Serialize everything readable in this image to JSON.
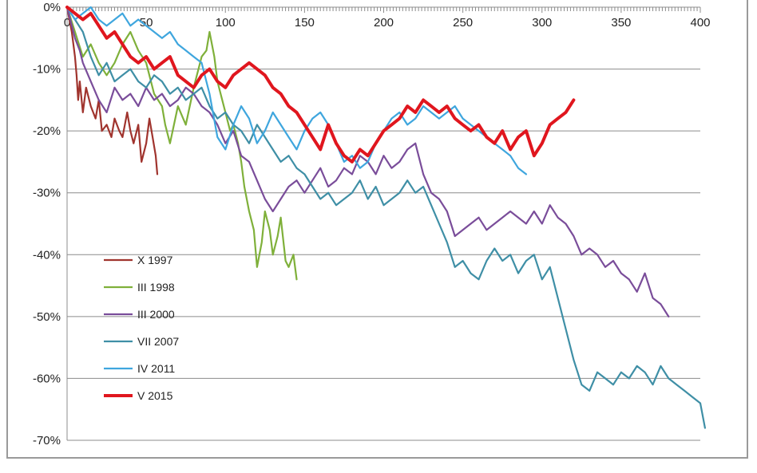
{
  "chart_data": {
    "type": "line",
    "title": "",
    "xlabel": "",
    "ylabel": "",
    "xlim": [
      0,
      400
    ],
    "ylim": [
      -70,
      0
    ],
    "x_ticks": [
      "0",
      "50",
      "100",
      "150",
      "200",
      "250",
      "300",
      "350",
      "400"
    ],
    "y_ticks": [
      "0%",
      "-10%",
      "-20%",
      "-30%",
      "-40%",
      "-50%",
      "-60%",
      "-70%"
    ],
    "grid": "horizontal",
    "legend_position": "lower-left",
    "series": [
      {
        "name": "X 1997",
        "color": "#a0342e",
        "x": [
          0,
          3,
          5,
          6,
          7,
          8,
          10,
          12,
          15,
          18,
          20,
          22,
          25,
          28,
          30,
          33,
          35,
          38,
          40,
          42,
          45,
          47,
          50,
          52,
          54,
          56,
          57
        ],
        "values": [
          0,
          -4,
          -8,
          -11,
          -15,
          -12,
          -17,
          -13,
          -16,
          -18,
          -15,
          -20,
          -19,
          -21,
          -18,
          -20,
          -21,
          -17,
          -20,
          -22,
          -19,
          -25,
          -22,
          -18,
          -21,
          -24,
          -27
        ]
      },
      {
        "name": "III 1998",
        "color": "#7fb03a",
        "x": [
          0,
          5,
          10,
          15,
          20,
          25,
          30,
          35,
          40,
          45,
          50,
          55,
          60,
          62,
          65,
          70,
          75,
          80,
          85,
          88,
          90,
          93,
          95,
          100,
          103,
          105,
          108,
          110,
          112,
          115,
          118,
          120,
          123,
          125,
          128,
          130,
          133,
          135,
          138,
          140,
          143,
          145
        ],
        "values": [
          0,
          -4,
          -8,
          -6,
          -9,
          -11,
          -9,
          -6,
          -4,
          -7,
          -9,
          -14,
          -16,
          -19,
          -22,
          -16,
          -19,
          -13,
          -8,
          -7,
          -4,
          -8,
          -12,
          -17,
          -20,
          -19,
          -22,
          -25,
          -29,
          -33,
          -36,
          -42,
          -38,
          -33,
          -36,
          -40,
          -37,
          -34,
          -41,
          -42,
          -40,
          -44
        ]
      },
      {
        "name": "III 2000",
        "color": "#7a4d9a",
        "x": [
          0,
          5,
          8,
          10,
          15,
          20,
          25,
          30,
          35,
          40,
          45,
          50,
          55,
          60,
          65,
          70,
          75,
          80,
          85,
          90,
          95,
          100,
          105,
          110,
          115,
          120,
          125,
          130,
          135,
          140,
          145,
          150,
          155,
          160,
          165,
          170,
          175,
          180,
          185,
          190,
          195,
          200,
          205,
          210,
          215,
          220,
          225,
          230,
          235,
          240,
          245,
          250,
          255,
          260,
          265,
          270,
          275,
          280,
          285,
          290,
          295,
          300,
          305,
          310,
          315,
          320,
          325,
          330,
          335,
          340,
          345,
          350,
          355,
          360,
          365,
          370,
          375,
          380
        ],
        "values": [
          0,
          -5,
          -7,
          -9,
          -12,
          -15,
          -17,
          -13,
          -15,
          -14,
          -16,
          -13,
          -15,
          -14,
          -16,
          -15,
          -13,
          -14,
          -16,
          -17,
          -19,
          -22,
          -20,
          -24,
          -25,
          -28,
          -31,
          -33,
          -31,
          -29,
          -28,
          -30,
          -28,
          -26,
          -29,
          -28,
          -26,
          -27,
          -24,
          -25,
          -27,
          -24,
          -26,
          -25,
          -23,
          -22,
          -27,
          -30,
          -31,
          -33,
          -37,
          -36,
          -35,
          -34,
          -36,
          -35,
          -34,
          -33,
          -34,
          -35,
          -33,
          -35,
          -32,
          -34,
          -35,
          -37,
          -40,
          -39,
          -40,
          -42,
          -41,
          -43,
          -44,
          -46,
          -43,
          -47,
          -48,
          -50
        ]
      },
      {
        "name": "VII 2007",
        "color": "#3f8fa6",
        "x": [
          0,
          5,
          10,
          15,
          20,
          25,
          30,
          35,
          40,
          45,
          50,
          55,
          60,
          65,
          70,
          75,
          80,
          85,
          90,
          95,
          100,
          105,
          110,
          115,
          120,
          125,
          130,
          135,
          140,
          145,
          150,
          155,
          160,
          165,
          170,
          175,
          180,
          185,
          190,
          195,
          200,
          205,
          210,
          215,
          220,
          225,
          230,
          235,
          240,
          245,
          250,
          255,
          260,
          265,
          270,
          275,
          280,
          285,
          290,
          295,
          300,
          305,
          310,
          315,
          320,
          325,
          330,
          335,
          340,
          345,
          350,
          355,
          360,
          365,
          370,
          375,
          380,
          385,
          390,
          395,
          400,
          403
        ],
        "values": [
          0,
          -2,
          -4,
          -8,
          -11,
          -9,
          -12,
          -11,
          -10,
          -12,
          -13,
          -11,
          -12,
          -14,
          -13,
          -15,
          -14,
          -13,
          -16,
          -18,
          -17,
          -19,
          -20,
          -22,
          -19,
          -21,
          -23,
          -25,
          -24,
          -26,
          -27,
          -29,
          -31,
          -30,
          -32,
          -31,
          -30,
          -28,
          -31,
          -29,
          -32,
          -31,
          -30,
          -28,
          -30,
          -29,
          -32,
          -35,
          -38,
          -42,
          -41,
          -43,
          -44,
          -41,
          -39,
          -41,
          -40,
          -43,
          -41,
          -40,
          -44,
          -42,
          -47,
          -52,
          -57,
          -61,
          -62,
          -59,
          -60,
          -61,
          -59,
          -60,
          -58,
          -59,
          -61,
          -58,
          -60,
          -61,
          -62,
          -63,
          -64,
          -68
        ]
      },
      {
        "name": "IV 2011",
        "color": "#3fa6de",
        "x": [
          0,
          5,
          10,
          15,
          20,
          25,
          30,
          35,
          40,
          45,
          50,
          55,
          60,
          65,
          70,
          75,
          80,
          85,
          90,
          95,
          100,
          105,
          110,
          115,
          120,
          125,
          130,
          135,
          140,
          145,
          150,
          155,
          160,
          165,
          170,
          175,
          180,
          185,
          190,
          195,
          200,
          205,
          210,
          215,
          220,
          225,
          230,
          235,
          240,
          245,
          250,
          255,
          260,
          265,
          270,
          275,
          280,
          285,
          290
        ],
        "values": [
          0,
          -2,
          -1,
          0,
          -2,
          -3,
          -2,
          -1,
          -3,
          -2,
          -3,
          -4,
          -5,
          -4,
          -6,
          -7,
          -8,
          -9,
          -14,
          -21,
          -23,
          -19,
          -16,
          -18,
          -22,
          -20,
          -17,
          -19,
          -21,
          -23,
          -20,
          -18,
          -17,
          -19,
          -22,
          -25,
          -24,
          -26,
          -25,
          -22,
          -20,
          -18,
          -17,
          -19,
          -18,
          -16,
          -17,
          -18,
          -17,
          -16,
          -18,
          -19,
          -20,
          -21,
          -22,
          -23,
          -24,
          -26,
          -27
        ]
      },
      {
        "name": "V 2015",
        "color": "#e0161e",
        "x": [
          0,
          5,
          10,
          15,
          20,
          25,
          30,
          35,
          40,
          45,
          50,
          55,
          60,
          65,
          70,
          75,
          80,
          85,
          90,
          95,
          100,
          105,
          110,
          115,
          120,
          125,
          130,
          135,
          140,
          145,
          150,
          155,
          160,
          165,
          170,
          175,
          180,
          185,
          190,
          195,
          200,
          205,
          210,
          215,
          220,
          225,
          230,
          235,
          240,
          245,
          250,
          255,
          260,
          265,
          270,
          275,
          280,
          285,
          290,
          295,
          300,
          305,
          310,
          315,
          320
        ],
        "values": [
          0,
          -1,
          -2,
          -1,
          -3,
          -5,
          -4,
          -6,
          -8,
          -9,
          -8,
          -10,
          -9,
          -8,
          -11,
          -12,
          -13,
          -11,
          -10,
          -12,
          -13,
          -11,
          -10,
          -9,
          -10,
          -11,
          -13,
          -14,
          -16,
          -17,
          -19,
          -21,
          -23,
          -19,
          -22,
          -24,
          -25,
          -23,
          -24,
          -22,
          -20,
          -19,
          -18,
          -16,
          -17,
          -15,
          -16,
          -17,
          -16,
          -18,
          -19,
          -20,
          -19,
          -21,
          -22,
          -20,
          -23,
          -21,
          -20,
          -24,
          -22,
          -19,
          -18,
          -17,
          -15
        ]
      }
    ]
  }
}
